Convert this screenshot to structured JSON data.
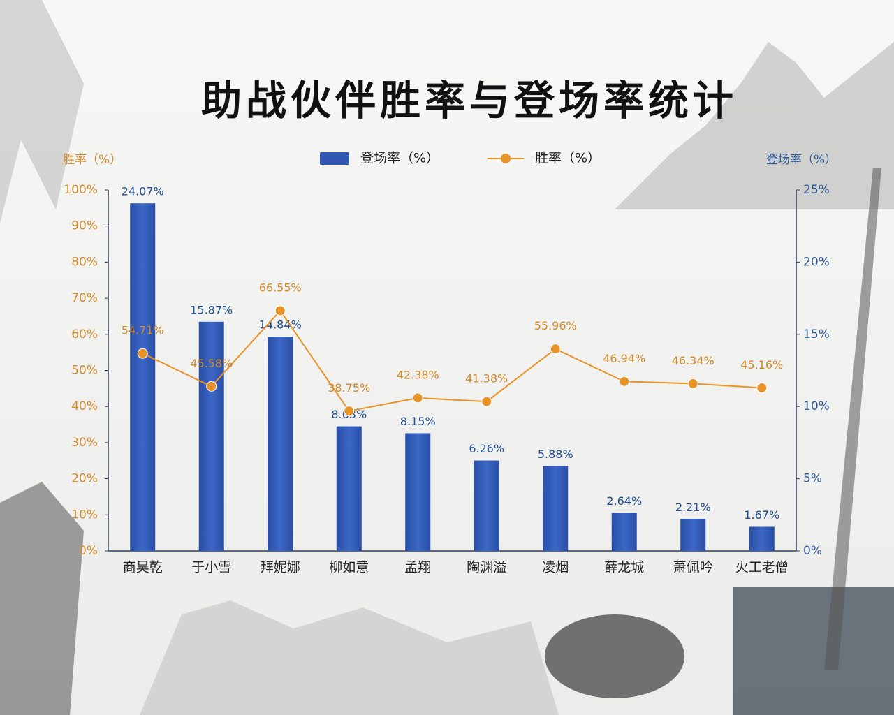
{
  "chart_data": {
    "type": "bar",
    "title": "助战伙伴胜率与登场率统计",
    "ylabel": "胜率（%）",
    "y2label": "登场率（%）",
    "categories": [
      "商昊乾",
      "于小雪",
      "拜妮娜",
      "柳如意",
      "孟翔",
      "陶渊溢",
      "凌烟",
      "薛龙城",
      "萧佩吟",
      "火工老僧"
    ],
    "series": [
      {
        "name": "登场率（%）",
        "type": "bar",
        "axis": "y2",
        "color": "#2f57b0",
        "values": [
          24.07,
          15.87,
          14.84,
          8.63,
          8.15,
          6.26,
          5.88,
          2.64,
          2.21,
          1.67
        ],
        "value_labels": [
          "24.07%",
          "15.87%",
          "14.84%",
          "8.63%",
          "8.15%",
          "6.26%",
          "5.88%",
          "2.64%",
          "2.21%",
          "1.67%"
        ]
      },
      {
        "name": "胜率（%）",
        "type": "line",
        "axis": "y",
        "color": "#e8922a",
        "values": [
          54.71,
          45.58,
          66.55,
          38.75,
          42.38,
          41.38,
          55.96,
          46.94,
          46.34,
          45.16
        ],
        "value_labels": [
          "54.71%",
          "45.58%",
          "66.55%",
          "38.75%",
          "42.38%",
          "41.38%",
          "55.96%",
          "46.94%",
          "46.34%",
          "45.16%"
        ]
      }
    ],
    "ylim": [
      0,
      100
    ],
    "yticks": [
      {
        "value": 0,
        "label": "0%"
      },
      {
        "value": 10,
        "label": "10%"
      },
      {
        "value": 20,
        "label": "20%"
      },
      {
        "value": 30,
        "label": "30%"
      },
      {
        "value": 40,
        "label": "40%"
      },
      {
        "value": 50,
        "label": "50%"
      },
      {
        "value": 60,
        "label": "60%"
      },
      {
        "value": 70,
        "label": "70%"
      },
      {
        "value": 80,
        "label": "80%"
      },
      {
        "value": 90,
        "label": "90%"
      },
      {
        "value": 100,
        "label": "100%"
      }
    ],
    "y2lim": [
      0,
      25
    ],
    "y2ticks": [
      {
        "value": 0,
        "label": "0%"
      },
      {
        "value": 5,
        "label": "5%"
      },
      {
        "value": 10,
        "label": "10%"
      },
      {
        "value": 15,
        "label": "15%"
      },
      {
        "value": 20,
        "label": "20%"
      },
      {
        "value": 25,
        "label": "25%"
      }
    ],
    "legend": "top"
  }
}
